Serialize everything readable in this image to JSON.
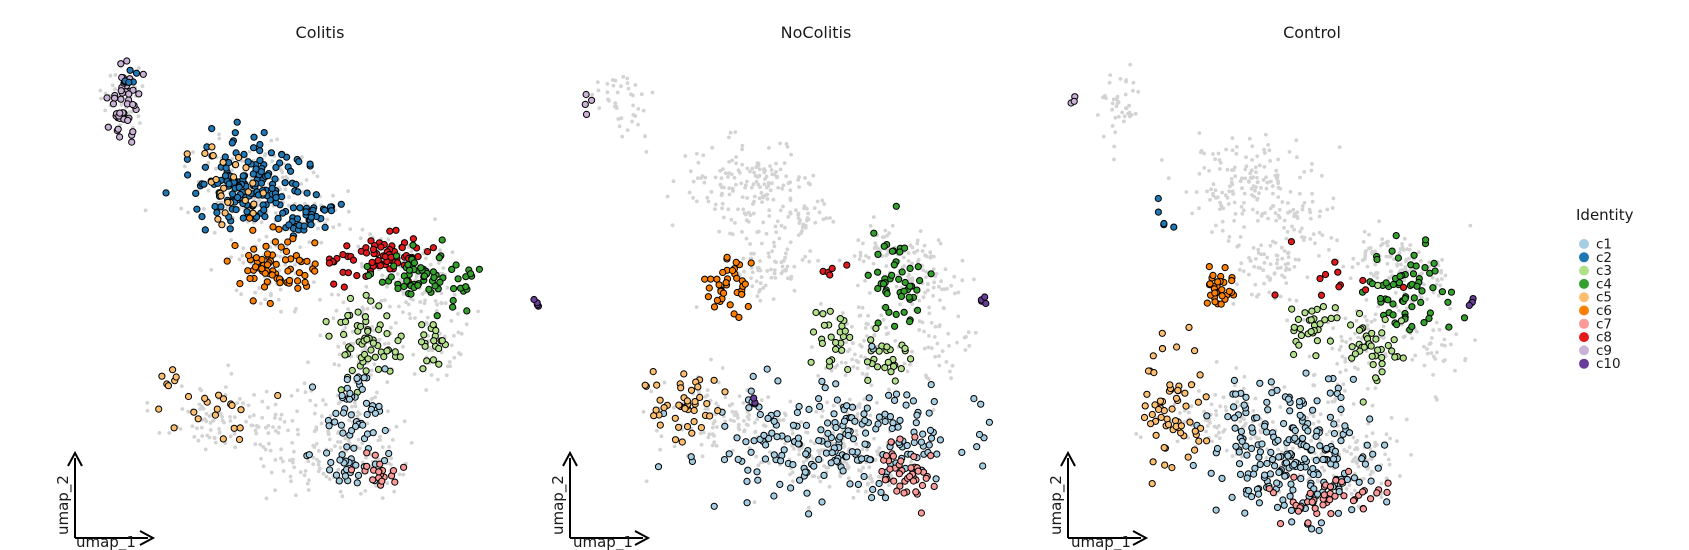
{
  "chart_data": {
    "type": "scatter",
    "panels": [
      "Colitis",
      "NoColitis",
      "Control"
    ],
    "xlabel": "umap_1",
    "ylabel": "umap_2",
    "legend": {
      "title": "Identity",
      "placement": "right",
      "items": [
        {
          "label": "c1",
          "color": "#a6cee3"
        },
        {
          "label": "c2",
          "color": "#1f78b4"
        },
        {
          "label": "c3",
          "color": "#b2df8a"
        },
        {
          "label": "c4",
          "color": "#33a02c"
        },
        {
          "label": "c5",
          "color": "#fdbf6f"
        },
        {
          "label": "c6",
          "color": "#ff7f00"
        },
        {
          "label": "c7",
          "color": "#fb9a99"
        },
        {
          "label": "c8",
          "color": "#e31a1c"
        },
        {
          "label": "c9",
          "color": "#cab2d6"
        },
        {
          "label": "c10",
          "color": "#6a3d9a"
        }
      ]
    },
    "background_color": "#d3d3d3",
    "highlight_outline": "#000000",
    "grid": false,
    "clusters": [
      {
        "id": "c1",
        "umap_1": 1.6,
        "umap_2": -3.6
      },
      {
        "id": "c2",
        "umap_1": -3.2,
        "umap_2": 5.2
      },
      {
        "id": "c3",
        "umap_1": 1.9,
        "umap_2": 0.6
      },
      {
        "id": "c4",
        "umap_1": 3.2,
        "umap_2": 3.0
      },
      {
        "id": "c5",
        "umap_1": -5.4,
        "umap_2": -1.6
      },
      {
        "id": "c6",
        "umap_1": -2.4,
        "umap_2": 2.8
      },
      {
        "id": "c7",
        "umap_1": 3.0,
        "umap_2": -4.4
      },
      {
        "id": "c8",
        "umap_1": 1.4,
        "umap_2": 3.4
      },
      {
        "id": "c9",
        "umap_1": -6.0,
        "umap_2": 9.0
      },
      {
        "id": "c10",
        "umap_1": 6.6,
        "umap_2": 2.2
      }
    ]
  }
}
